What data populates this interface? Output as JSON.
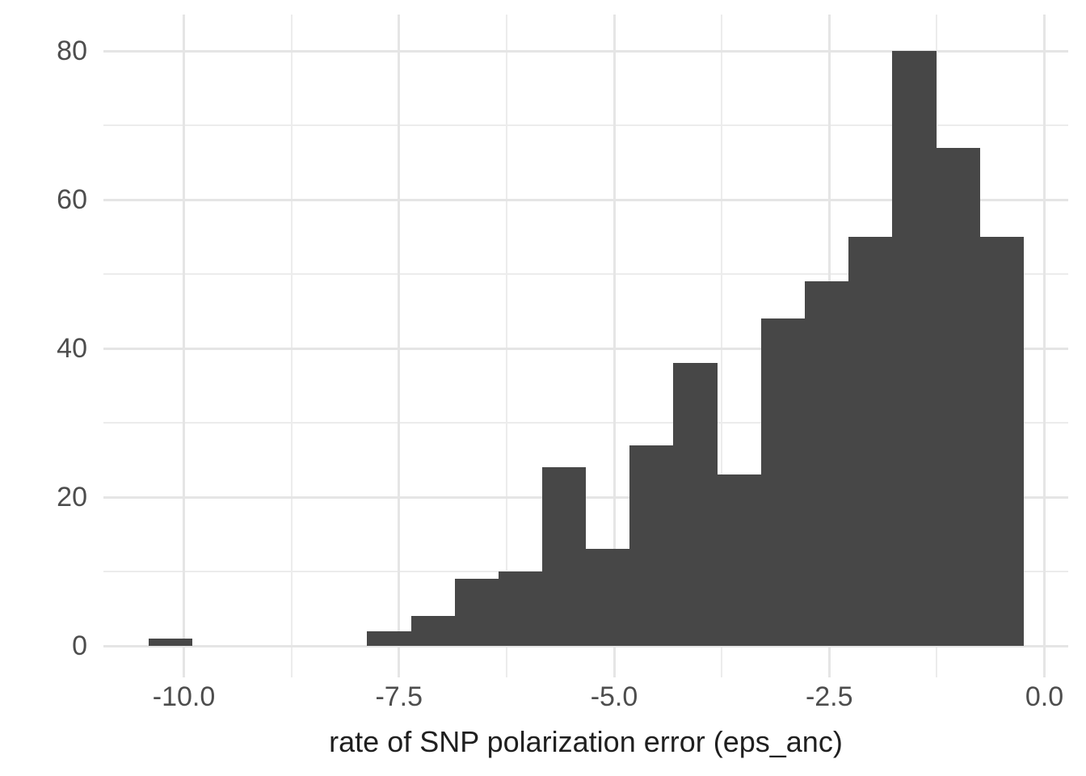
{
  "chart_data": {
    "type": "bar",
    "subtype": "histogram",
    "title": "",
    "xlabel": "rate of SNP polarization error (eps_anc)",
    "ylabel": "",
    "legend_position": "none",
    "grid": "major+minor",
    "xlim": [
      -10.92,
      0.28
    ],
    "ylim": [
      -4.2,
      84.9
    ],
    "total_count": 501,
    "x_ticks": [
      {
        "value": -10.0,
        "label": "-10.0"
      },
      {
        "value": -7.5,
        "label": "-7.5"
      },
      {
        "value": -5.0,
        "label": "-5.0"
      },
      {
        "value": -2.5,
        "label": "-2.5"
      },
      {
        "value": 0.0,
        "label": "0.0"
      }
    ],
    "y_ticks": [
      {
        "value": 0,
        "label": "0"
      },
      {
        "value": 20,
        "label": "20"
      },
      {
        "value": 40,
        "label": "40"
      },
      {
        "value": 60,
        "label": "60"
      },
      {
        "value": 80,
        "label": "80"
      }
    ],
    "bins": [
      {
        "start": -10.413,
        "end": -9.904,
        "count": 1
      },
      {
        "start": -9.904,
        "end": -9.396,
        "count": 0
      },
      {
        "start": -9.396,
        "end": -8.887,
        "count": 0
      },
      {
        "start": -8.887,
        "end": -8.379,
        "count": 0
      },
      {
        "start": -8.379,
        "end": -7.87,
        "count": 0
      },
      {
        "start": -7.87,
        "end": -7.361,
        "count": 2
      },
      {
        "start": -7.361,
        "end": -6.853,
        "count": 4
      },
      {
        "start": -6.853,
        "end": -6.344,
        "count": 9
      },
      {
        "start": -6.344,
        "end": -5.836,
        "count": 10
      },
      {
        "start": -5.836,
        "end": -5.327,
        "count": 24
      },
      {
        "start": -5.327,
        "end": -4.818,
        "count": 13
      },
      {
        "start": -4.818,
        "end": -4.31,
        "count": 27
      },
      {
        "start": -4.31,
        "end": -3.801,
        "count": 38
      },
      {
        "start": -3.801,
        "end": -3.293,
        "count": 23
      },
      {
        "start": -3.293,
        "end": -2.784,
        "count": 44
      },
      {
        "start": -2.784,
        "end": -2.275,
        "count": 49
      },
      {
        "start": -2.275,
        "end": -1.767,
        "count": 55
      },
      {
        "start": -1.767,
        "end": -1.258,
        "count": 80
      },
      {
        "start": -1.258,
        "end": -0.75,
        "count": 67
      },
      {
        "start": -0.75,
        "end": -0.241,
        "count": 55
      }
    ],
    "colors": {
      "bar": "#474747",
      "grid_major": "#e5e5e5",
      "grid_minor": "#ececec",
      "tick_text": "#4d4d4d",
      "axis_title_text": "#1f1f1f",
      "background": "#ffffff"
    }
  }
}
